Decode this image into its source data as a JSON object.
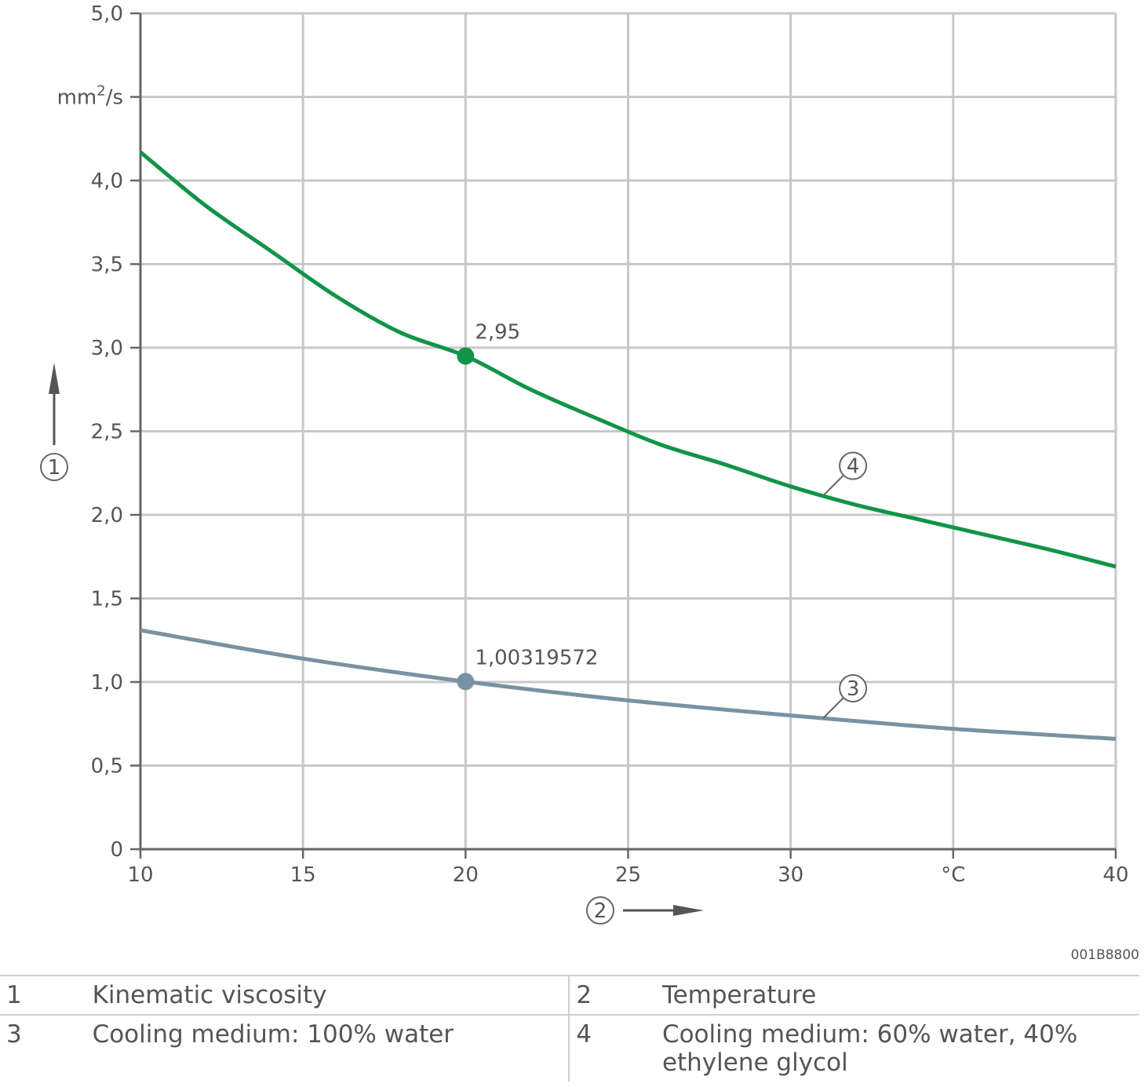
{
  "chart_data": {
    "type": "line",
    "xlim": [
      10,
      40
    ],
    "ylim": [
      0,
      5.0
    ],
    "x_ticks": [
      10,
      15,
      20,
      25,
      30,
      35,
      40
    ],
    "x_tick_labels": [
      "10",
      "15",
      "20",
      "25",
      "30",
      "°C",
      "40"
    ],
    "y_ticks": [
      0,
      0.5,
      1.0,
      1.5,
      2.0,
      2.5,
      3.0,
      3.5,
      4.0,
      4.5,
      5.0
    ],
    "y_tick_labels": [
      "0",
      "0,5",
      "1,0",
      "1,5",
      "2,0",
      "2,5",
      "3,0",
      "3,5",
      "4,0",
      "mm2/s",
      "5,0"
    ],
    "y_unit": {
      "base": "mm",
      "sup": "2",
      "rest": "/s"
    },
    "y_axis_marker": "1",
    "x_axis_marker": "2",
    "grid": true,
    "series": [
      {
        "callout": "4",
        "color": "#0f9448",
        "x": [
          10,
          12,
          14,
          16,
          18,
          20,
          22,
          24,
          26,
          28,
          30,
          32,
          34,
          36,
          38,
          40
        ],
        "values": [
          4.17,
          3.85,
          3.58,
          3.31,
          3.09,
          2.95,
          2.75,
          2.58,
          2.42,
          2.3,
          2.17,
          2.06,
          1.97,
          1.88,
          1.79,
          1.69
        ],
        "marker": {
          "x": 20,
          "y": 2.95,
          "label": "2,95"
        },
        "callout_at_x": 31
      },
      {
        "callout": "3",
        "color": "#7892a2",
        "x": [
          10,
          15,
          20,
          25,
          30,
          35,
          40
        ],
        "values": [
          1.31,
          1.14,
          1.003,
          0.89,
          0.8,
          0.72,
          0.66
        ],
        "marker": {
          "x": 20,
          "y": 1.003,
          "label": "1,00319572"
        },
        "callout_at_x": 31
      }
    ]
  },
  "doc_id": "001B8800",
  "legend": [
    {
      "num1": "1",
      "label1": "Kinematic viscosity",
      "num2": "2",
      "label2": "Temperature"
    },
    {
      "num1": "3",
      "label1": "Cooling medium: 100% water",
      "num2": "4",
      "label2": "Cooling medium: 60% water, 40% ethylene glycol"
    }
  ]
}
